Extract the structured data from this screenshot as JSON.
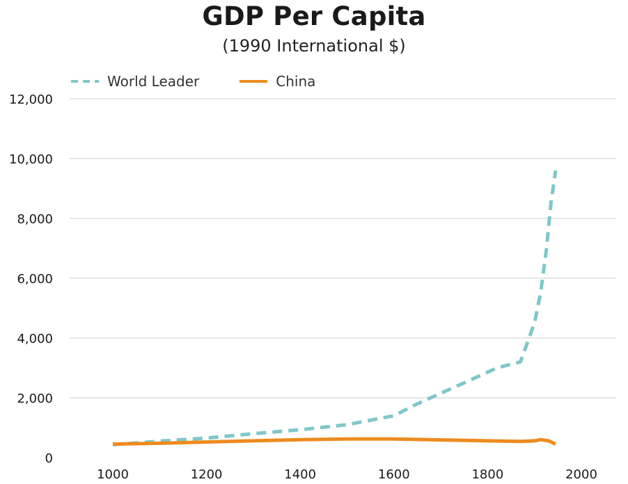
{
  "chart_data": {
    "type": "line",
    "title": "GDP Per Capita",
    "subtitle": "(1990 International $)",
    "xlabel": "",
    "ylabel": "",
    "xlim": [
      1000,
      2000
    ],
    "ylim": [
      0,
      12000
    ],
    "xticks": [
      1000,
      1200,
      1400,
      1600,
      1800,
      2000
    ],
    "xtick_labels": [
      "1000",
      "1200",
      "1400",
      "1600",
      "1800",
      "2000"
    ],
    "yticks": [
      0,
      2000,
      4000,
      6000,
      8000,
      10000,
      12000
    ],
    "ytick_labels": [
      "0",
      "2,000",
      "4,000",
      "6,000",
      "8,000",
      "10,000",
      "12,000"
    ],
    "grid": "horizontal",
    "legend_position": "top-left",
    "series": [
      {
        "name": "World Leader",
        "style": "dashed",
        "color": "#7fc7c9",
        "points": [
          [
            1000,
            430
          ],
          [
            1100,
            550
          ],
          [
            1200,
            650
          ],
          [
            1300,
            800
          ],
          [
            1400,
            930
          ],
          [
            1500,
            1100
          ],
          [
            1600,
            1400
          ],
          [
            1650,
            1800
          ],
          [
            1700,
            2150
          ],
          [
            1750,
            2500
          ],
          [
            1820,
            3000
          ],
          [
            1870,
            3200
          ],
          [
            1900,
            4500
          ],
          [
            1913,
            5500
          ],
          [
            1925,
            6900
          ],
          [
            1935,
            8500
          ],
          [
            1945,
            9600
          ]
        ]
      },
      {
        "name": "China",
        "style": "solid",
        "color": "#ed8b1e",
        "points": [
          [
            1000,
            450
          ],
          [
            1100,
            480
          ],
          [
            1200,
            520
          ],
          [
            1300,
            560
          ],
          [
            1400,
            600
          ],
          [
            1500,
            620
          ],
          [
            1600,
            620
          ],
          [
            1700,
            590
          ],
          [
            1800,
            560
          ],
          [
            1870,
            540
          ],
          [
            1900,
            560
          ],
          [
            1913,
            600
          ],
          [
            1930,
            560
          ],
          [
            1945,
            450
          ]
        ]
      }
    ]
  }
}
